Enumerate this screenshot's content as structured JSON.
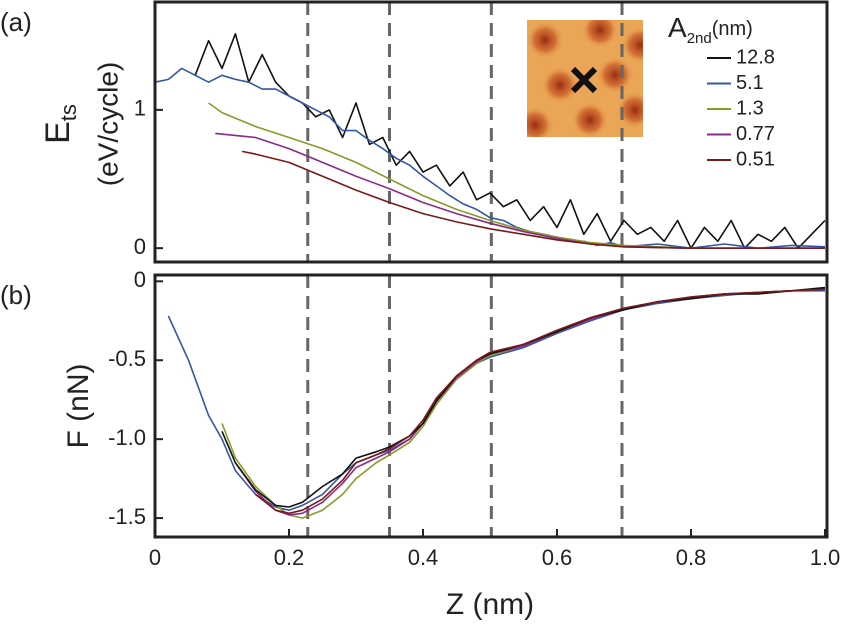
{
  "chart_data": [
    {
      "type": "line",
      "panel_label": "(a)",
      "ylabel": {
        "main": "E",
        "sub": "ts",
        "line2": "(eV/cycle)"
      },
      "legend_title": {
        "main": "A",
        "sub": "2nd",
        "unit": "(nm)"
      },
      "xlim": [
        0,
        1
      ],
      "ylim": [
        -0.1,
        1.78
      ],
      "yticks": [
        0,
        1
      ],
      "vlines": [
        0.228,
        0.35,
        0.502,
        0.697
      ],
      "series": [
        {
          "name": "12.8",
          "color": "#111111",
          "x": [
            0.06,
            0.08,
            0.1,
            0.12,
            0.14,
            0.16,
            0.18,
            0.2,
            0.22,
            0.24,
            0.26,
            0.28,
            0.3,
            0.32,
            0.34,
            0.36,
            0.38,
            0.4,
            0.42,
            0.44,
            0.46,
            0.48,
            0.5,
            0.52,
            0.54,
            0.56,
            0.58,
            0.6,
            0.62,
            0.64,
            0.66,
            0.68,
            0.7,
            0.72,
            0.74,
            0.76,
            0.78,
            0.8,
            0.82,
            0.84,
            0.86,
            0.88,
            0.9,
            0.92,
            0.94,
            0.96,
            0.98,
            1.0
          ],
          "values": [
            1.25,
            1.5,
            1.3,
            1.55,
            1.2,
            1.4,
            1.2,
            1.1,
            1.05,
            0.95,
            1.0,
            0.8,
            1.05,
            0.75,
            0.8,
            0.6,
            0.7,
            0.55,
            0.6,
            0.45,
            0.55,
            0.35,
            0.4,
            0.3,
            0.35,
            0.2,
            0.3,
            0.15,
            0.35,
            0.1,
            0.25,
            0.05,
            0.2,
            0.1,
            0.15,
            0.05,
            0.2,
            0.0,
            0.15,
            0.05,
            0.2,
            0.0,
            0.1,
            0.05,
            0.15,
            0.0,
            0.1,
            0.2
          ]
        },
        {
          "name": "5.1",
          "color": "#3556a6",
          "x": [
            0.0,
            0.02,
            0.04,
            0.06,
            0.08,
            0.1,
            0.12,
            0.14,
            0.16,
            0.18,
            0.2,
            0.22,
            0.24,
            0.26,
            0.28,
            0.3,
            0.32,
            0.34,
            0.36,
            0.38,
            0.4,
            0.42,
            0.44,
            0.46,
            0.48,
            0.5,
            0.52,
            0.54,
            0.56,
            0.58,
            0.6,
            0.62,
            0.64,
            0.66,
            0.68,
            0.7,
            0.75,
            0.8,
            0.85,
            0.9,
            0.95,
            1.0
          ],
          "values": [
            1.2,
            1.22,
            1.3,
            1.25,
            1.2,
            1.25,
            1.22,
            1.2,
            1.15,
            1.15,
            1.1,
            1.05,
            1.0,
            0.95,
            0.85,
            0.85,
            0.78,
            0.72,
            0.65,
            0.6,
            0.52,
            0.45,
            0.38,
            0.32,
            0.28,
            0.22,
            0.2,
            0.15,
            0.12,
            0.1,
            0.08,
            0.05,
            0.05,
            0.02,
            0.04,
            0.01,
            0.03,
            0.0,
            0.03,
            0.0,
            0.02,
            0.01
          ]
        },
        {
          "name": "1.3",
          "color": "#8a9a2a",
          "x": [
            0.08,
            0.1,
            0.15,
            0.2,
            0.25,
            0.3,
            0.35,
            0.4,
            0.45,
            0.5,
            0.55,
            0.6,
            0.65,
            0.7,
            0.75,
            0.8,
            0.9,
            1.0
          ],
          "values": [
            1.05,
            0.98,
            0.88,
            0.8,
            0.72,
            0.62,
            0.5,
            0.38,
            0.28,
            0.2,
            0.13,
            0.08,
            0.04,
            0.02,
            0.01,
            0.0,
            0.0,
            0.0
          ]
        },
        {
          "name": "0.77",
          "color": "#8a2a8a",
          "x": [
            0.09,
            0.15,
            0.2,
            0.25,
            0.3,
            0.35,
            0.4,
            0.45,
            0.5,
            0.55,
            0.6,
            0.65,
            0.7,
            0.8,
            0.9,
            1.0
          ],
          "values": [
            0.83,
            0.8,
            0.72,
            0.62,
            0.52,
            0.43,
            0.33,
            0.25,
            0.18,
            0.12,
            0.07,
            0.03,
            0.01,
            0.0,
            0.0,
            0.0
          ]
        },
        {
          "name": "0.51",
          "color": "#7a1a1a",
          "x": [
            0.13,
            0.15,
            0.2,
            0.25,
            0.3,
            0.35,
            0.4,
            0.45,
            0.5,
            0.55,
            0.6,
            0.65,
            0.7,
            0.8,
            0.9,
            1.0
          ],
          "values": [
            0.7,
            0.68,
            0.62,
            0.52,
            0.42,
            0.33,
            0.25,
            0.19,
            0.14,
            0.1,
            0.06,
            0.03,
            0.01,
            0.0,
            0.0,
            0.0
          ]
        }
      ]
    },
    {
      "type": "line",
      "panel_label": "(b)",
      "ylabel": "F (nN)",
      "xlabel": "Z (nm)",
      "xlim": [
        0,
        1
      ],
      "ylim": [
        -1.62,
        0.04
      ],
      "xticks": [
        0,
        0.2,
        0.4,
        0.6,
        0.8,
        {
          "value": 1,
          "label": "1.0"
        }
      ],
      "yticks": [
        0,
        -0.5,
        {
          "value": -1,
          "label": "-1.0"
        },
        -1.5
      ],
      "vlines": [
        0.228,
        0.35,
        0.502,
        0.697
      ],
      "series": [
        {
          "color": "#3556a6",
          "x": [
            0.02,
            0.05,
            0.08,
            0.1,
            0.12,
            0.15,
            0.18,
            0.2,
            0.22,
            0.25,
            0.28,
            0.3,
            0.33,
            0.35,
            0.38,
            0.4,
            0.42,
            0.45,
            0.48,
            0.5,
            0.55,
            0.6,
            0.65,
            0.7,
            0.75,
            0.8,
            0.85,
            0.9,
            0.95,
            1.0
          ],
          "values": [
            -0.22,
            -0.5,
            -0.85,
            -1.0,
            -1.2,
            -1.35,
            -1.43,
            -1.45,
            -1.42,
            -1.35,
            -1.22,
            -1.15,
            -1.1,
            -1.07,
            -1.0,
            -0.9,
            -0.75,
            -0.62,
            -0.52,
            -0.48,
            -0.42,
            -0.33,
            -0.25,
            -0.18,
            -0.14,
            -0.11,
            -0.09,
            -0.07,
            -0.06,
            -0.06
          ]
        },
        {
          "color": "#8a9a2a",
          "x": [
            0.1,
            0.12,
            0.15,
            0.18,
            0.2,
            0.22,
            0.25,
            0.28,
            0.3,
            0.33,
            0.35,
            0.38,
            0.4,
            0.42,
            0.45,
            0.48,
            0.5,
            0.55,
            0.6,
            0.65,
            0.7,
            0.75,
            0.8,
            0.85,
            0.9,
            0.95,
            1.0
          ],
          "values": [
            -0.9,
            -1.12,
            -1.3,
            -1.42,
            -1.48,
            -1.5,
            -1.45,
            -1.35,
            -1.25,
            -1.15,
            -1.1,
            -1.02,
            -0.92,
            -0.78,
            -0.62,
            -0.52,
            -0.47,
            -0.41,
            -0.32,
            -0.24,
            -0.18,
            -0.13,
            -0.1,
            -0.08,
            -0.07,
            -0.06,
            -0.05
          ]
        },
        {
          "color": "#8a2a8a",
          "x": [
            0.12,
            0.15,
            0.18,
            0.2,
            0.22,
            0.25,
            0.28,
            0.3,
            0.33,
            0.35,
            0.38,
            0.4,
            0.42,
            0.45,
            0.48,
            0.5,
            0.55,
            0.6,
            0.65,
            0.7,
            0.75,
            0.8,
            0.85,
            0.9,
            0.95,
            1.0
          ],
          "values": [
            -1.15,
            -1.33,
            -1.45,
            -1.48,
            -1.47,
            -1.4,
            -1.28,
            -1.18,
            -1.12,
            -1.08,
            -1.0,
            -0.9,
            -0.76,
            -0.61,
            -0.51,
            -0.46,
            -0.41,
            -0.32,
            -0.24,
            -0.18,
            -0.13,
            -0.1,
            -0.08,
            -0.07,
            -0.06,
            -0.05
          ]
        },
        {
          "color": "#111111",
          "x": [
            0.1,
            0.12,
            0.15,
            0.18,
            0.2,
            0.22,
            0.25,
            0.28,
            0.3,
            0.33,
            0.35,
            0.38,
            0.4,
            0.42,
            0.45,
            0.48,
            0.5,
            0.55,
            0.6,
            0.65,
            0.7,
            0.75,
            0.8,
            0.85,
            0.9,
            0.95,
            1.0
          ],
          "values": [
            -0.95,
            -1.15,
            -1.32,
            -1.42,
            -1.43,
            -1.4,
            -1.3,
            -1.22,
            -1.12,
            -1.08,
            -1.05,
            -0.98,
            -0.9,
            -0.76,
            -0.6,
            -0.5,
            -0.46,
            -0.4,
            -0.32,
            -0.23,
            -0.18,
            -0.13,
            -0.11,
            -0.08,
            -0.08,
            -0.06,
            -0.04
          ]
        },
        {
          "color": "#7a1a1a",
          "x": [
            0.15,
            0.18,
            0.2,
            0.22,
            0.25,
            0.28,
            0.3,
            0.33,
            0.35,
            0.38,
            0.4,
            0.42,
            0.45,
            0.48,
            0.5,
            0.55,
            0.6,
            0.65,
            0.7,
            0.75,
            0.8,
            0.85,
            0.9,
            0.95,
            1.0
          ],
          "values": [
            -1.35,
            -1.45,
            -1.47,
            -1.45,
            -1.38,
            -1.26,
            -1.15,
            -1.1,
            -1.06,
            -0.98,
            -0.88,
            -0.74,
            -0.6,
            -0.5,
            -0.45,
            -0.4,
            -0.31,
            -0.23,
            -0.17,
            -0.13,
            -0.1,
            -0.08,
            -0.07,
            -0.06,
            -0.05
          ]
        }
      ]
    }
  ]
}
